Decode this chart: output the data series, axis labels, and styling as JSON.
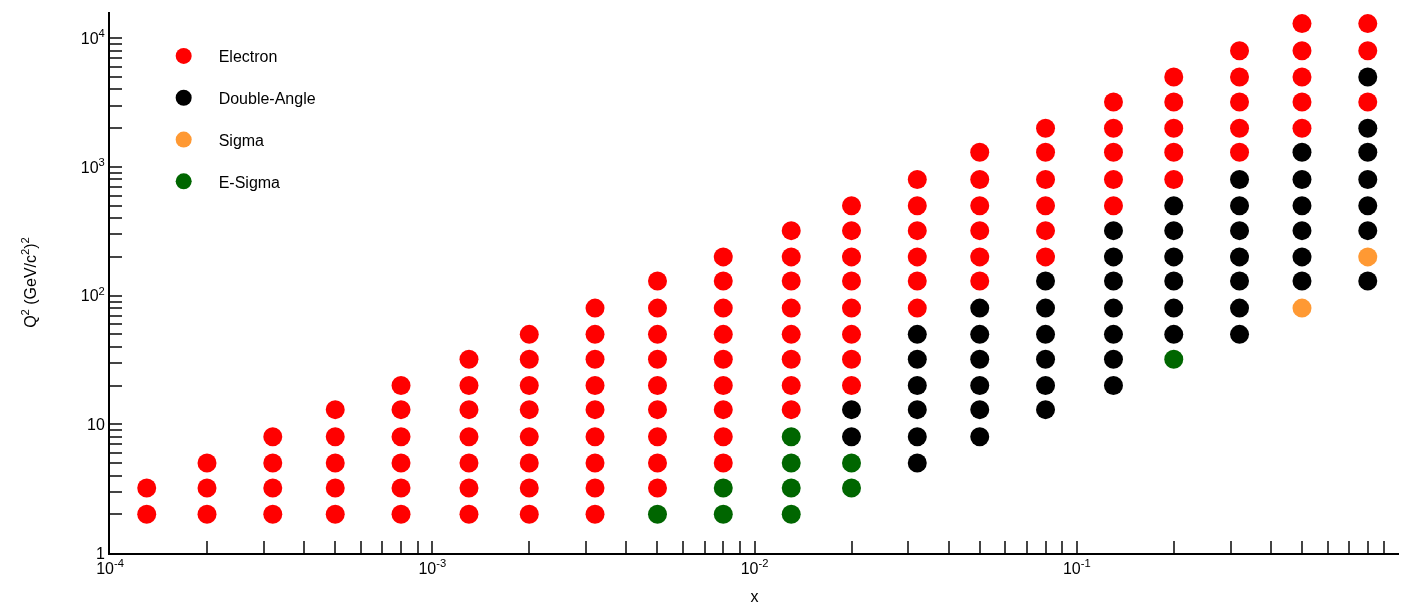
{
  "chart_data": {
    "type": "scatter",
    "xlabel": "x",
    "ylabel": "Q$^{2}$ (GeV/c$^{2}$)$^{2}$",
    "log": "xy",
    "legend": "top left",
    "marker": "circle",
    "xlim": [
      0.0001,
      1
    ],
    "ylim": [
      1,
      16000
    ],
    "xticks": [
      {
        "value": 0.0001,
        "label": "10$^{-4}$"
      },
      {
        "value": 0.0002,
        "label": null
      },
      {
        "value": 0.0003,
        "label": null
      },
      {
        "value": 0.0004,
        "label": null
      },
      {
        "value": 0.0005,
        "label": null
      },
      {
        "value": 0.0006,
        "label": null
      },
      {
        "value": 0.0007,
        "label": null
      },
      {
        "value": 0.0008,
        "label": null
      },
      {
        "value": 0.0009,
        "label": null
      },
      {
        "value": 0.001,
        "label": "10$^{-3}$"
      },
      {
        "value": 0.002,
        "label": null
      },
      {
        "value": 0.003,
        "label": null
      },
      {
        "value": 0.004,
        "label": null
      },
      {
        "value": 0.005,
        "label": null
      },
      {
        "value": 0.006,
        "label": null
      },
      {
        "value": 0.007,
        "label": null
      },
      {
        "value": 0.008,
        "label": null
      },
      {
        "value": 0.009,
        "label": null
      },
      {
        "value": 0.01,
        "label": "10$^{-2}$"
      },
      {
        "value": 0.02,
        "label": null
      },
      {
        "value": 0.03,
        "label": null
      },
      {
        "value": 0.04,
        "label": null
      },
      {
        "value": 0.05,
        "label": null
      },
      {
        "value": 0.06,
        "label": null
      },
      {
        "value": 0.07,
        "label": null
      },
      {
        "value": 0.08,
        "label": null
      },
      {
        "value": 0.09,
        "label": null
      },
      {
        "value": 0.1,
        "label": "10$^{-1}$"
      },
      {
        "value": 0.2,
        "label": null
      },
      {
        "value": 0.3,
        "label": null
      },
      {
        "value": 0.4,
        "label": null
      },
      {
        "value": 0.5,
        "label": null
      },
      {
        "value": 0.6,
        "label": null
      },
      {
        "value": 0.7,
        "label": null
      },
      {
        "value": 0.8,
        "label": null
      },
      {
        "value": 0.9,
        "label": null
      }
    ],
    "yticks": [
      1,
      {
        "value": 2,
        "label": null
      },
      {
        "value": 3,
        "label": null
      },
      {
        "value": 4,
        "label": null
      },
      {
        "value": 5,
        "label": null
      },
      {
        "value": 6,
        "label": null
      },
      {
        "value": 7,
        "label": null
      },
      {
        "value": 8,
        "label": null
      },
      {
        "value": 9,
        "label": null
      },
      10,
      {
        "value": 20,
        "label": null
      },
      {
        "value": 30,
        "label": null
      },
      {
        "value": 40,
        "label": null
      },
      {
        "value": 50,
        "label": null
      },
      {
        "value": 60,
        "label": null
      },
      {
        "value": 70,
        "label": null
      },
      {
        "value": 80,
        "label": null
      },
      {
        "value": 90,
        "label": null
      },
      {
        "value": 100,
        "label": "10$^{2}$"
      },
      {
        "value": 200,
        "label": null
      },
      {
        "value": 300,
        "label": null
      },
      {
        "value": 400,
        "label": null
      },
      {
        "value": 500,
        "label": null
      },
      {
        "value": 600,
        "label": null
      },
      {
        "value": 700,
        "label": null
      },
      {
        "value": 800,
        "label": null
      },
      {
        "value": 900,
        "label": null
      },
      {
        "value": 1000,
        "label": "10$^{3}$"
      },
      {
        "value": 2000,
        "label": null
      },
      {
        "value": 3000,
        "label": null
      },
      {
        "value": 4000,
        "label": null
      },
      {
        "value": 5000,
        "label": null
      },
      {
        "value": 6000,
        "label": null
      },
      {
        "value": 7000,
        "label": null
      },
      {
        "value": 8000,
        "label": null
      },
      {
        "value": 9000,
        "label": null
      },
      {
        "value": 10000,
        "label": "10$^{4}$"
      }
    ],
    "series": [
      {
        "name": "Electron",
        "color": "#ff0000",
        "x": [
          0.00013,
          0.00013,
          0.0002,
          0.0002,
          0.0002,
          0.00032,
          0.00032,
          0.00032,
          0.00032,
          0.0005,
          0.0005,
          0.0005,
          0.0005,
          0.0005,
          0.0008,
          0.0008,
          0.0008,
          0.0008,
          0.0008,
          0.0008,
          0.0013,
          0.0013,
          0.0013,
          0.0013,
          0.0013,
          0.0013,
          0.0013,
          0.002,
          0.002,
          0.002,
          0.002,
          0.002,
          0.002,
          0.002,
          0.002,
          0.0032,
          0.0032,
          0.0032,
          0.0032,
          0.0032,
          0.0032,
          0.0032,
          0.0032,
          0.0032,
          0.005,
          0.005,
          0.005,
          0.005,
          0.005,
          0.005,
          0.005,
          0.005,
          0.005,
          0.008,
          0.008,
          0.008,
          0.008,
          0.008,
          0.008,
          0.008,
          0.008,
          0.008,
          0.013,
          0.013,
          0.013,
          0.013,
          0.013,
          0.013,
          0.013,
          0.013,
          0.02,
          0.02,
          0.02,
          0.02,
          0.02,
          0.02,
          0.02,
          0.02,
          0.032,
          0.032,
          0.032,
          0.032,
          0.032,
          0.032,
          0.05,
          0.05,
          0.05,
          0.05,
          0.05,
          0.05,
          0.08,
          0.08,
          0.08,
          0.08,
          0.08,
          0.08,
          0.13,
          0.13,
          0.13,
          0.13,
          0.13,
          0.2,
          0.2,
          0.2,
          0.2,
          0.2,
          0.32,
          0.32,
          0.32,
          0.32,
          0.32,
          0.5,
          0.5,
          0.5,
          0.5,
          0.5,
          0.8,
          0.8,
          0.8
        ],
        "values": [
          2,
          3.2,
          2,
          3.2,
          5,
          2,
          3.2,
          5,
          8,
          2,
          3.2,
          5,
          8,
          13,
          2,
          3.2,
          5,
          8,
          13,
          20,
          2,
          3.2,
          5,
          8,
          13,
          20,
          32,
          2,
          3.2,
          5,
          8,
          13,
          20,
          32,
          50,
          2,
          3.2,
          5,
          8,
          13,
          20,
          32,
          50,
          80,
          3.2,
          5,
          8,
          13,
          20,
          32,
          50,
          80,
          130,
          5,
          8,
          13,
          20,
          32,
          50,
          80,
          130,
          200,
          13,
          20,
          32,
          50,
          80,
          130,
          200,
          320,
          20,
          32,
          50,
          80,
          130,
          200,
          320,
          500,
          80,
          130,
          200,
          320,
          500,
          800,
          130,
          200,
          320,
          500,
          800,
          1300,
          200,
          320,
          500,
          800,
          1300,
          2000,
          500,
          800,
          1300,
          2000,
          3200,
          800,
          1300,
          2000,
          3200,
          5000,
          1300,
          2000,
          3200,
          5000,
          8000,
          2000,
          3200,
          5000,
          8000,
          13000,
          3200,
          8000,
          13000
        ]
      },
      {
        "name": "Double-Angle",
        "color": "#000000",
        "x": [
          0.02,
          0.02,
          0.032,
          0.032,
          0.032,
          0.032,
          0.032,
          0.032,
          0.05,
          0.05,
          0.05,
          0.05,
          0.05,
          0.05,
          0.08,
          0.08,
          0.08,
          0.08,
          0.08,
          0.08,
          0.13,
          0.13,
          0.13,
          0.13,
          0.13,
          0.13,
          0.13,
          0.2,
          0.2,
          0.2,
          0.2,
          0.2,
          0.2,
          0.32,
          0.32,
          0.32,
          0.32,
          0.32,
          0.32,
          0.32,
          0.5,
          0.5,
          0.5,
          0.5,
          0.5,
          0.5,
          0.8,
          0.8,
          0.8,
          0.8,
          0.8,
          0.8,
          0.8
        ],
        "values": [
          8,
          13,
          5,
          8,
          13,
          20,
          32,
          50,
          8,
          13,
          20,
          32,
          50,
          80,
          13,
          20,
          32,
          50,
          80,
          130,
          20,
          32,
          50,
          80,
          130,
          200,
          320,
          50,
          80,
          130,
          200,
          320,
          500,
          50,
          80,
          130,
          200,
          320,
          500,
          800,
          130,
          200,
          320,
          500,
          800,
          1300,
          130,
          320,
          500,
          800,
          1300,
          2000,
          5000
        ]
      },
      {
        "name": "Sigma",
        "color": "#ff9933",
        "x": [
          0.5,
          0.8
        ],
        "values": [
          80,
          200
        ]
      },
      {
        "name": "E-Sigma",
        "color": "#006600",
        "x": [
          0.005,
          0.008,
          0.008,
          0.013,
          0.013,
          0.013,
          0.013,
          0.02,
          0.02,
          0.2
        ],
        "values": [
          2,
          2,
          3.2,
          2,
          3.2,
          5,
          8,
          3.2,
          5,
          32
        ]
      }
    ]
  }
}
